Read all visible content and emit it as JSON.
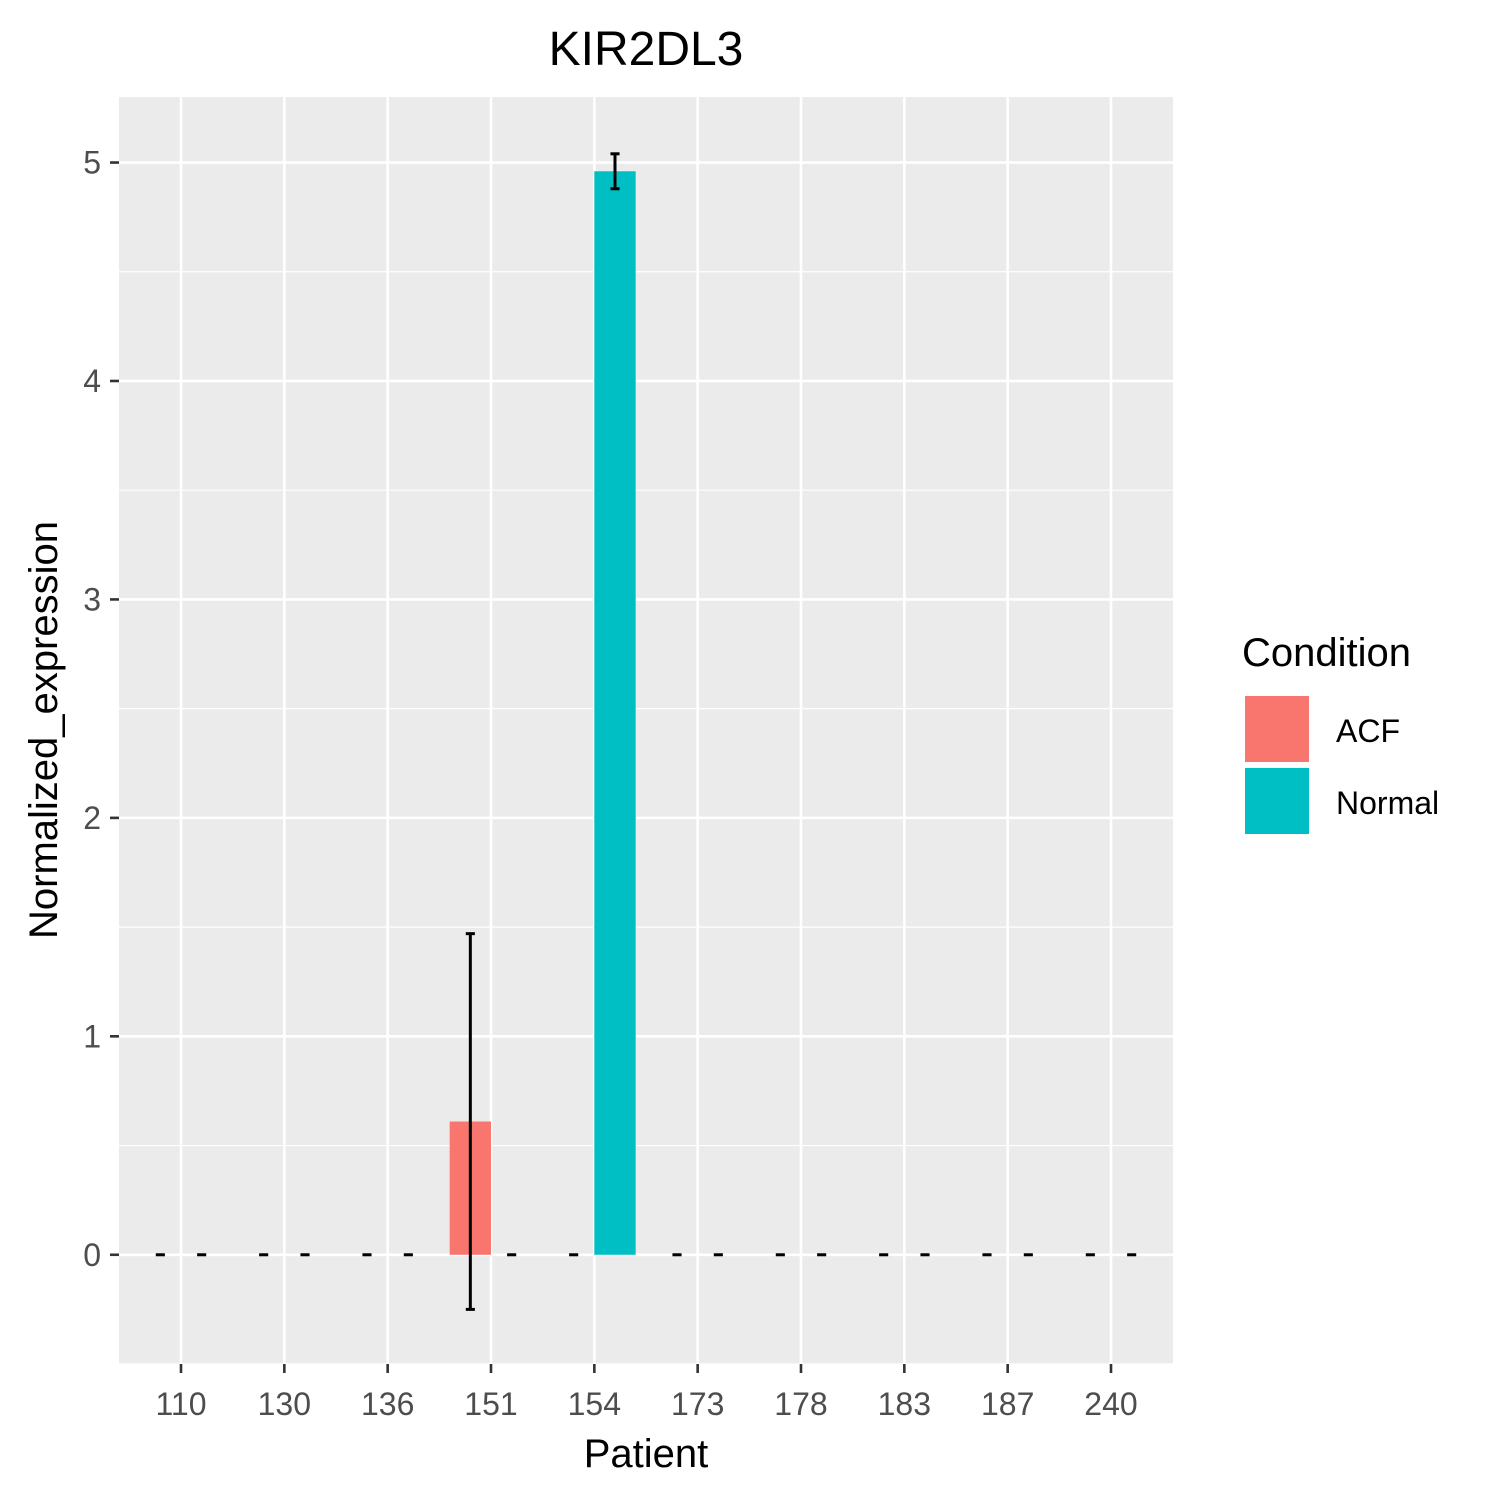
{
  "chart_data": {
    "type": "bar",
    "title": "KIR2DL3",
    "xlabel": "Patient",
    "ylabel": "Normalized_expression",
    "categories": [
      "110",
      "130",
      "136",
      "151",
      "154",
      "173",
      "178",
      "183",
      "187",
      "240"
    ],
    "ylim": [
      -0.5,
      5.3
    ],
    "yticks": [
      0,
      1,
      2,
      3,
      4,
      5
    ],
    "grid": true,
    "legend": {
      "title": "Condition",
      "position": "right",
      "entries": [
        "ACF",
        "Normal"
      ]
    },
    "series": [
      {
        "name": "ACF",
        "color": "#F8766D",
        "values": [
          0,
          0,
          0,
          0.61,
          0,
          0,
          0,
          0,
          0,
          0
        ],
        "error_low": [
          0,
          0,
          0,
          -0.25,
          0,
          0,
          0,
          0,
          0,
          0
        ],
        "error_high": [
          0,
          0,
          0,
          1.47,
          0,
          0,
          0,
          0,
          0,
          0
        ]
      },
      {
        "name": "Normal",
        "color": "#00BFC4",
        "values": [
          0,
          0,
          0,
          0,
          4.96,
          0,
          0,
          0,
          0,
          0
        ],
        "error_low": [
          0,
          0,
          0,
          0,
          4.88,
          0,
          0,
          0,
          0,
          0
        ],
        "error_high": [
          0,
          0,
          0,
          0,
          5.04,
          0,
          0,
          0,
          0,
          0
        ]
      }
    ]
  }
}
